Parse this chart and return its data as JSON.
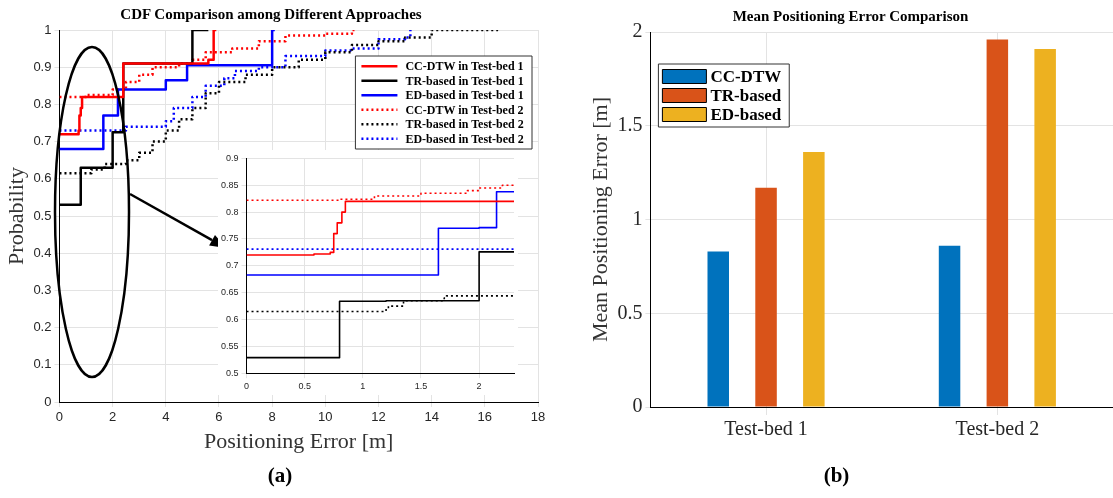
{
  "chart_data": [
    {
      "type": "step",
      "title": "CDF Comparison among Different Approaches",
      "xlabel": "Positioning Error [m]",
      "ylabel": "Probability",
      "annotations": [
        "(a)"
      ],
      "xlim": [
        0,
        18
      ],
      "ylim": [
        0,
        1
      ],
      "xticks": [
        0,
        2,
        4,
        6,
        8,
        10,
        12,
        14,
        16,
        18
      ],
      "yticks": [
        0,
        0.1,
        0.2,
        0.3,
        0.4,
        0.5,
        0.6,
        0.7,
        0.8,
        0.9,
        1
      ],
      "grid": true,
      "legend": "top right",
      "series": [
        {
          "name": "CC-DTW in Test-bed 1",
          "color": "#ff0000",
          "line_style": "solid",
          "x": [
            0,
            0.72,
            0.75,
            0.8,
            0.85,
            2.4,
            5.6,
            5.8,
            5.9
          ],
          "values": [
            0.72,
            0.73,
            0.77,
            0.79,
            0.82,
            0.91,
            0.92,
            1,
            1
          ]
        },
        {
          "name": "TR-based in Test-bed 1",
          "color": "#000000",
          "line_style": "solid",
          "x": [
            0,
            0.8,
            2.0,
            2.4,
            5.0,
            5.6
          ],
          "values": [
            0.53,
            0.63,
            0.725,
            0.91,
            1,
            1
          ]
        },
        {
          "name": "ED-based in Test-bed 1",
          "color": "#0000ff",
          "line_style": "solid",
          "x": [
            0,
            1.65,
            2.2,
            4.0,
            4.8,
            8.0,
            8.1
          ],
          "values": [
            0.68,
            0.77,
            0.84,
            0.865,
            0.905,
            1,
            1
          ]
        },
        {
          "name": "CC-DTW in Test-bed 2",
          "color": "#ff0000",
          "line_style": "dotted",
          "x": [
            0,
            1,
            2,
            2.5,
            3,
            3.5,
            4.5,
            5,
            5.5,
            6.5,
            7.5,
            8.5,
            10,
            11,
            11.2
          ],
          "values": [
            0.82,
            0.825,
            0.84,
            0.86,
            0.88,
            0.9,
            0.91,
            0.92,
            0.94,
            0.95,
            0.97,
            0.985,
            0.99,
            1,
            1
          ]
        },
        {
          "name": "TR-based in Test-bed 2",
          "color": "#000000",
          "line_style": "dotted",
          "x": [
            0,
            1.2,
            1.7,
            2.5,
            3,
            3.5,
            4,
            4.5,
            5,
            5.5,
            6,
            7,
            8,
            9,
            10,
            11,
            12,
            13,
            14,
            16.5
          ],
          "values": [
            0.615,
            0.625,
            0.64,
            0.65,
            0.67,
            0.7,
            0.73,
            0.76,
            0.79,
            0.83,
            0.86,
            0.88,
            0.9,
            0.92,
            0.94,
            0.96,
            0.97,
            0.98,
            1,
            1
          ]
        },
        {
          "name": "ED-based in Test-bed 2",
          "color": "#0000ff",
          "line_style": "dotted",
          "x": [
            0,
            2.0,
            2.5,
            4,
            4.3,
            5,
            5.5,
            6.2,
            6.6,
            7.5,
            8.5,
            10,
            11,
            12,
            13,
            13.2
          ],
          "values": [
            0.73,
            0.73,
            0.74,
            0.755,
            0.79,
            0.82,
            0.85,
            0.87,
            0.89,
            0.9,
            0.93,
            0.945,
            0.95,
            0.975,
            0.98,
            1
          ]
        }
      ]
    },
    {
      "type": "step",
      "xlim": [
        0,
        2.3
      ],
      "ylim": [
        0.5,
        0.9
      ],
      "xticks": [
        0,
        0.5,
        1,
        1.5,
        2
      ],
      "yticks": [
        0.5,
        0.55,
        0.6,
        0.65,
        0.7,
        0.75,
        0.8,
        0.85,
        0.9
      ],
      "grid": true,
      "series": [
        {
          "color": "#ff0000",
          "line_style": "solid",
          "x": [
            0,
            0.58,
            0.72,
            0.75,
            0.78,
            0.82,
            0.85,
            2.3
          ],
          "values": [
            0.72,
            0.722,
            0.725,
            0.76,
            0.78,
            0.8,
            0.82,
            0.82
          ]
        },
        {
          "color": "#000000",
          "line_style": "solid",
          "x": [
            0,
            0.8,
            1.2,
            2.0,
            2.3
          ],
          "values": [
            0.529,
            0.634,
            0.635,
            0.726,
            0.726
          ]
        },
        {
          "color": "#0000ff",
          "line_style": "solid",
          "x": [
            0,
            1.65,
            2.0,
            2.15,
            2.3
          ],
          "values": [
            0.683,
            0.77,
            0.771,
            0.838,
            0.838
          ]
        },
        {
          "color": "#ff0000",
          "line_style": "dotted",
          "x": [
            0,
            0.8,
            1.1,
            1.5,
            1.9,
            2.0,
            2.2,
            2.3
          ],
          "values": [
            0.822,
            0.824,
            0.83,
            0.835,
            0.84,
            0.845,
            0.85,
            0.85
          ]
        },
        {
          "color": "#000000",
          "line_style": "dotted",
          "x": [
            0,
            1.2,
            1.22,
            1.35,
            1.7,
            1.72,
            2.3
          ],
          "values": [
            0.615,
            0.62,
            0.625,
            0.635,
            0.64,
            0.644,
            0.644
          ]
        },
        {
          "color": "#0000ff",
          "line_style": "dotted",
          "x": [
            0,
            2.3
          ],
          "values": [
            0.731,
            0.731
          ]
        }
      ]
    },
    {
      "type": "bar",
      "title": "Mean Positioning Error Comparison",
      "ylabel": "Mean Positioning Error [m]",
      "annotations": [
        "(b)"
      ],
      "categories": [
        "Test-bed 1",
        "Test-bed 2"
      ],
      "ylim": [
        0,
        2
      ],
      "yticks": [
        0,
        0.5,
        1,
        1.5,
        2
      ],
      "grid": true,
      "legend": "top left",
      "series": [
        {
          "name": "CC-DTW",
          "color": "#0072bd",
          "values": [
            0.83,
            0.86
          ]
        },
        {
          "name": "TR-based",
          "color": "#d95319",
          "values": [
            1.17,
            1.96
          ]
        },
        {
          "name": "ED-based",
          "color": "#edb120",
          "values": [
            1.36,
            1.91
          ]
        }
      ]
    }
  ]
}
